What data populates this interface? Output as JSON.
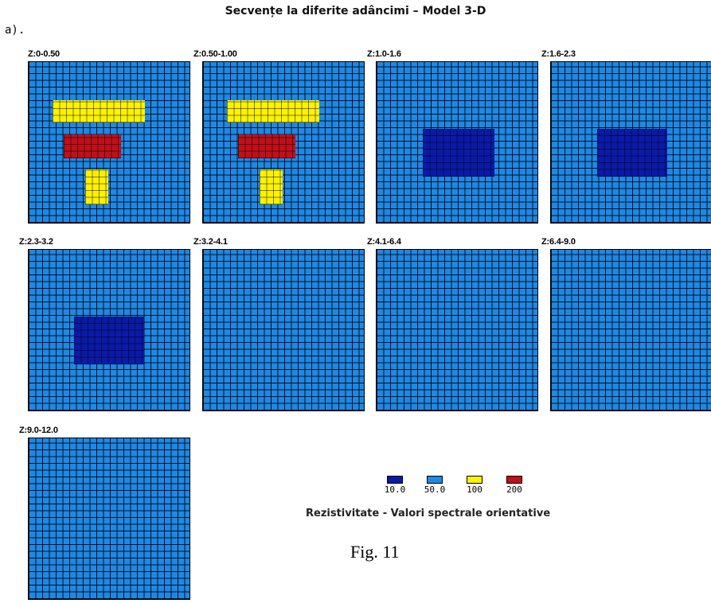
{
  "title": "Secvențe la diferite adâncimi – Model 3-D",
  "subtitle": "a).",
  "colors": {
    "10": "#0A1AA8",
    "50": "#1E88E5",
    "100": "#FFF200",
    "200": "#C0101A"
  },
  "panels": [
    {
      "label": "Z:0-0.50",
      "blocks": [
        {
          "value": 100
        },
        {
          "value": 200
        },
        {
          "value": 100
        }
      ]
    },
    {
      "label": "Z:0.50-1.00",
      "blocks": [
        {
          "value": 100
        },
        {
          "value": 200
        },
        {
          "value": 100
        }
      ]
    },
    {
      "label": "Z:1.0-1.6",
      "blocks": [
        {
          "value": 10
        }
      ]
    },
    {
      "label": "Z:1.6-2.3",
      "blocks": [
        {
          "value": 10
        }
      ]
    },
    {
      "label": "Z:2.3-3.2",
      "blocks": [
        {
          "value": 10
        }
      ]
    },
    {
      "label": "Z:3.2-4.1",
      "blocks": []
    },
    {
      "label": "Z:4.1-6.4",
      "blocks": []
    },
    {
      "label": "Z:6.4-9.0",
      "blocks": []
    },
    {
      "label": "Z:9.0-12.0",
      "blocks": []
    }
  ],
  "legend": {
    "items": [
      {
        "label": "10.0",
        "color": "#0A1AA8"
      },
      {
        "label": "50.0",
        "color": "#1E88E5"
      },
      {
        "label": "100",
        "color": "#FFF200"
      },
      {
        "label": "200",
        "color": "#C0101A"
      }
    ],
    "caption": "Rezistivitate - Valori spectrale orientative"
  },
  "figure_caption": "Fig. 11"
}
